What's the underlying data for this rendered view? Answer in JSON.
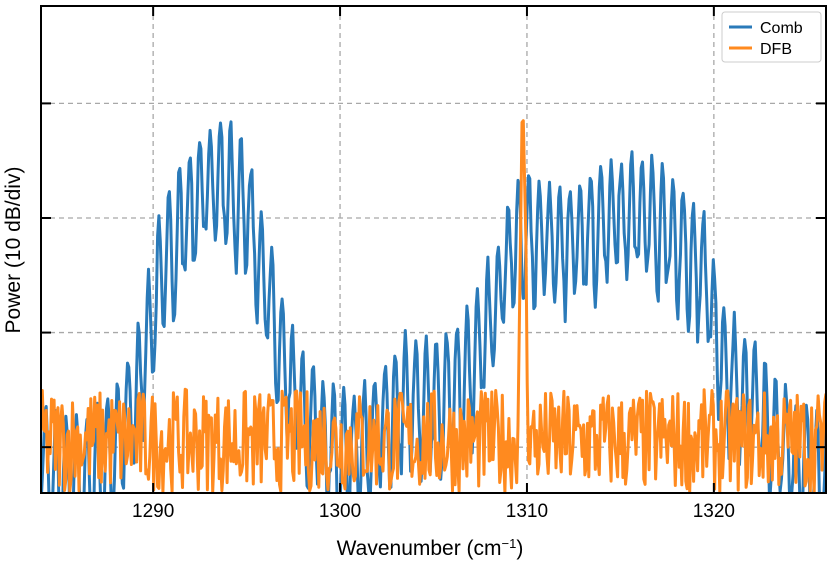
{
  "chart_data": {
    "type": "line",
    "title": "",
    "xlabel": "Wavenumber (cm",
    "xlabel_sup": "−1",
    "xlabel_close": ")",
    "ylabel": "Power (10 dB/div)",
    "xlim": [
      1284,
      1326
    ],
    "ylim": [
      0,
      4.25
    ],
    "x_ticks": [
      1290,
      1300,
      1310,
      1320
    ],
    "x_tick_labels": [
      "1290",
      "1300",
      "1310",
      "1320"
    ],
    "y_ticks": [
      0.4,
      1.4,
      2.4,
      3.4
    ],
    "y_tick_labels": [],
    "grid": true,
    "legend_position": "top-right",
    "series": [
      {
        "name": "Comb",
        "color": "#2a7ab9",
        "x_range": [
          1284,
          1326
        ],
        "points": 600,
        "envelope": [
          [
            1284,
            0.9
          ],
          [
            1286,
            0.7
          ],
          [
            1287.5,
            0.85
          ],
          [
            1289,
            1.4
          ],
          [
            1290.5,
            2.6
          ],
          [
            1292,
            3.05
          ],
          [
            1293.5,
            3.4
          ],
          [
            1295,
            3.1
          ],
          [
            1296,
            2.4
          ],
          [
            1297.5,
            1.45
          ],
          [
            1299,
            1.05
          ],
          [
            1300.5,
            0.95
          ],
          [
            1302,
            1.1
          ],
          [
            1303.5,
            1.45
          ],
          [
            1305,
            1.4
          ],
          [
            1306.5,
            1.55
          ],
          [
            1307.5,
            1.9
          ],
          [
            1308.5,
            2.3
          ],
          [
            1309.5,
            2.9
          ],
          [
            1310.5,
            2.85
          ],
          [
            1312,
            2.7
          ],
          [
            1313.5,
            2.9
          ],
          [
            1315,
            3.0
          ],
          [
            1316.5,
            3.0
          ],
          [
            1318,
            2.8
          ],
          [
            1319.5,
            2.5
          ],
          [
            1320.5,
            1.7
          ],
          [
            1322,
            1.4
          ],
          [
            1324,
            0.95
          ],
          [
            1326,
            0.7
          ]
        ]
      },
      {
        "name": "DFB",
        "color": "#ff8a1f",
        "x_range": [
          1284,
          1326
        ],
        "points": 600,
        "baseline": 0.5,
        "peak_x": 1309.8,
        "peak_y": 3.4
      }
    ]
  }
}
